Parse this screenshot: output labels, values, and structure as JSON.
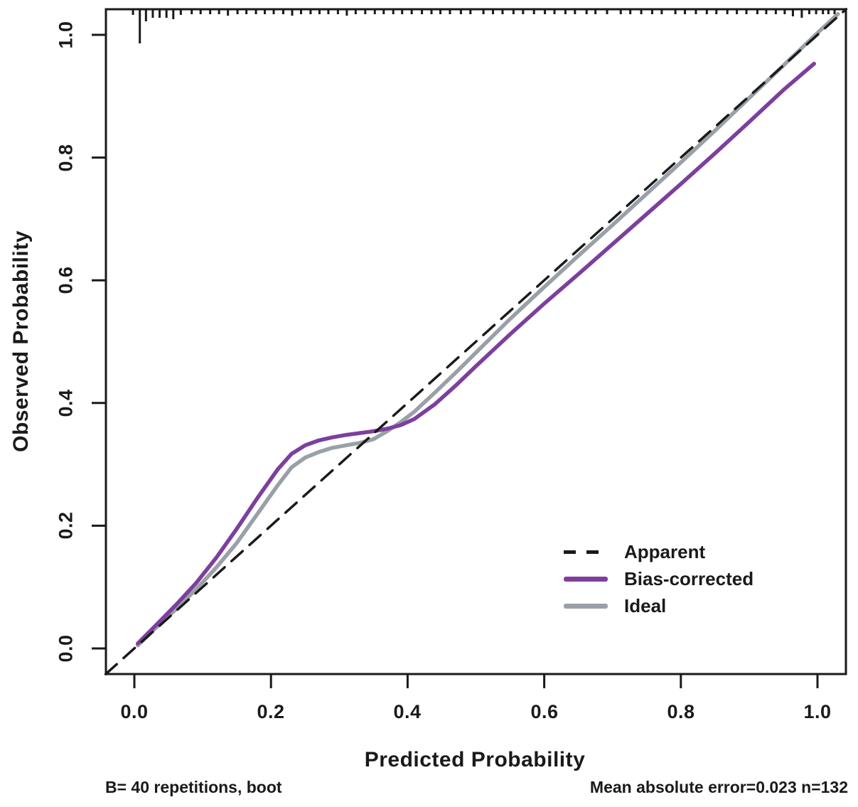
{
  "chart_data": {
    "type": "line",
    "title": "",
    "xlabel": "Predicted Probability",
    "ylabel": "Observed Probability",
    "xlim": [
      -0.042,
      1.042
    ],
    "ylim": [
      -0.042,
      1.042
    ],
    "grid": false,
    "legend_position": "bottom-right-inside",
    "x_tick_values": [
      0.0,
      0.2,
      0.4,
      0.6,
      0.8,
      1.0
    ],
    "x_tick_labels": [
      "0.0",
      "0.2",
      "0.4",
      "0.6",
      "0.8",
      "1.0"
    ],
    "y_tick_values": [
      0.0,
      0.2,
      0.4,
      0.6,
      0.8,
      1.0
    ],
    "y_tick_labels": [
      "0.0",
      "0.2",
      "0.4",
      "0.6",
      "0.8",
      "1.0"
    ],
    "colors": {
      "axis": "#1a1a1a",
      "apparent": "#1a1a1a",
      "bias_corrected": "#7d3f9d",
      "ideal": "#9aa0a8"
    },
    "legend": [
      {
        "label": "Apparent",
        "color": "#1a1a1a",
        "style": "dashed"
      },
      {
        "label": "Bias-corrected",
        "color": "#7d3f9d",
        "style": "solid"
      },
      {
        "label": "Ideal",
        "color": "#9aa0a8",
        "style": "solid"
      }
    ],
    "series": [
      {
        "name": "Ideal",
        "color": "#9aa0a8",
        "style": "solid",
        "width": 5.5,
        "points": [
          [
            0.005,
            0.005
          ],
          [
            0.03,
            0.032
          ],
          [
            0.06,
            0.063
          ],
          [
            0.09,
            0.096
          ],
          [
            0.12,
            0.132
          ],
          [
            0.15,
            0.172
          ],
          [
            0.18,
            0.219
          ],
          [
            0.21,
            0.266
          ],
          [
            0.23,
            0.295
          ],
          [
            0.25,
            0.311
          ],
          [
            0.27,
            0.32
          ],
          [
            0.29,
            0.327
          ],
          [
            0.31,
            0.331
          ],
          [
            0.33,
            0.335
          ],
          [
            0.35,
            0.341
          ],
          [
            0.37,
            0.354
          ],
          [
            0.39,
            0.369
          ],
          [
            0.41,
            0.386
          ],
          [
            0.44,
            0.417
          ],
          [
            0.47,
            0.449
          ],
          [
            0.5,
            0.482
          ],
          [
            0.55,
            0.537
          ],
          [
            0.6,
            0.589
          ],
          [
            0.65,
            0.64
          ],
          [
            0.7,
            0.69
          ],
          [
            0.75,
            0.741
          ],
          [
            0.8,
            0.792
          ],
          [
            0.85,
            0.844
          ],
          [
            0.9,
            0.897
          ],
          [
            0.95,
            0.95
          ],
          [
            1.0,
            1.003
          ],
          [
            1.03,
            1.034
          ]
        ]
      },
      {
        "name": "Bias-corrected",
        "color": "#7d3f9d",
        "style": "solid",
        "width": 5.5,
        "points": [
          [
            0.005,
            0.008
          ],
          [
            0.03,
            0.036
          ],
          [
            0.06,
            0.07
          ],
          [
            0.09,
            0.106
          ],
          [
            0.12,
            0.148
          ],
          [
            0.15,
            0.195
          ],
          [
            0.18,
            0.245
          ],
          [
            0.21,
            0.292
          ],
          [
            0.23,
            0.317
          ],
          [
            0.25,
            0.331
          ],
          [
            0.27,
            0.339
          ],
          [
            0.29,
            0.344
          ],
          [
            0.31,
            0.348
          ],
          [
            0.33,
            0.351
          ],
          [
            0.35,
            0.354
          ],
          [
            0.37,
            0.358
          ],
          [
            0.39,
            0.364
          ],
          [
            0.41,
            0.374
          ],
          [
            0.44,
            0.398
          ],
          [
            0.47,
            0.428
          ],
          [
            0.5,
            0.46
          ],
          [
            0.55,
            0.512
          ],
          [
            0.6,
            0.562
          ],
          [
            0.65,
            0.61
          ],
          [
            0.7,
            0.659
          ],
          [
            0.75,
            0.708
          ],
          [
            0.8,
            0.757
          ],
          [
            0.85,
            0.807
          ],
          [
            0.9,
            0.858
          ],
          [
            0.95,
            0.91
          ],
          [
            0.995,
            0.953
          ]
        ]
      },
      {
        "name": "Apparent",
        "color": "#1a1a1a",
        "style": "dashed",
        "width": 3.5,
        "points": [
          [
            -0.042,
            -0.042
          ],
          [
            1.042,
            1.042
          ]
        ]
      }
    ],
    "rug": [
      [
        -0.002,
        8
      ],
      [
        0.008,
        48
      ],
      [
        0.017,
        17
      ],
      [
        0.027,
        12
      ],
      [
        0.037,
        12
      ],
      [
        0.047,
        12
      ],
      [
        0.057,
        14
      ],
      [
        0.068,
        8
      ],
      [
        0.084,
        7
      ],
      [
        0.097,
        7
      ],
      [
        0.111,
        7
      ],
      [
        0.124,
        7
      ],
      [
        0.137,
        9
      ],
      [
        0.151,
        7
      ],
      [
        0.164,
        7
      ],
      [
        0.178,
        7
      ],
      [
        0.191,
        7
      ],
      [
        0.204,
        7
      ],
      [
        0.218,
        7
      ],
      [
        0.231,
        9
      ],
      [
        0.244,
        7
      ],
      [
        0.258,
        7
      ],
      [
        0.271,
        7
      ],
      [
        0.284,
        7
      ],
      [
        0.298,
        7
      ],
      [
        0.311,
        9
      ],
      [
        0.324,
        7
      ],
      [
        0.338,
        7
      ],
      [
        0.352,
        7
      ],
      [
        0.365,
        7
      ],
      [
        0.379,
        7
      ],
      [
        0.392,
        7
      ],
      [
        0.406,
        7
      ],
      [
        0.421,
        7
      ],
      [
        0.435,
        7
      ],
      [
        0.448,
        7
      ],
      [
        0.462,
        7
      ],
      [
        0.478,
        7
      ],
      [
        0.492,
        7
      ],
      [
        0.511,
        7
      ],
      [
        0.525,
        7
      ],
      [
        0.539,
        7
      ],
      [
        0.555,
        7
      ],
      [
        0.569,
        7
      ],
      [
        0.585,
        7
      ],
      [
        0.601,
        7
      ],
      [
        0.615,
        7
      ],
      [
        0.631,
        7
      ],
      [
        0.645,
        7
      ],
      [
        0.662,
        7
      ],
      [
        0.675,
        7
      ],
      [
        0.692,
        7
      ],
      [
        0.712,
        7
      ],
      [
        0.726,
        7
      ],
      [
        0.742,
        7
      ],
      [
        0.758,
        7
      ],
      [
        0.772,
        7
      ],
      [
        0.792,
        7
      ],
      [
        0.806,
        7
      ],
      [
        0.822,
        7
      ],
      [
        0.838,
        7
      ],
      [
        0.852,
        7
      ],
      [
        0.868,
        7
      ],
      [
        0.882,
        7
      ],
      [
        0.896,
        7
      ],
      [
        0.912,
        7
      ],
      [
        0.925,
        7
      ],
      [
        0.939,
        7
      ],
      [
        0.952,
        7
      ],
      [
        0.964,
        10
      ],
      [
        0.977,
        12
      ],
      [
        0.988,
        7
      ],
      [
        0.998,
        7
      ],
      [
        1.008,
        7
      ],
      [
        1.016,
        7
      ],
      [
        1.025,
        7
      ]
    ],
    "annotations": {
      "bottom_left": "B= 40 repetitions, boot",
      "bottom_right": "Mean absolute error=0.023 n=132"
    }
  }
}
